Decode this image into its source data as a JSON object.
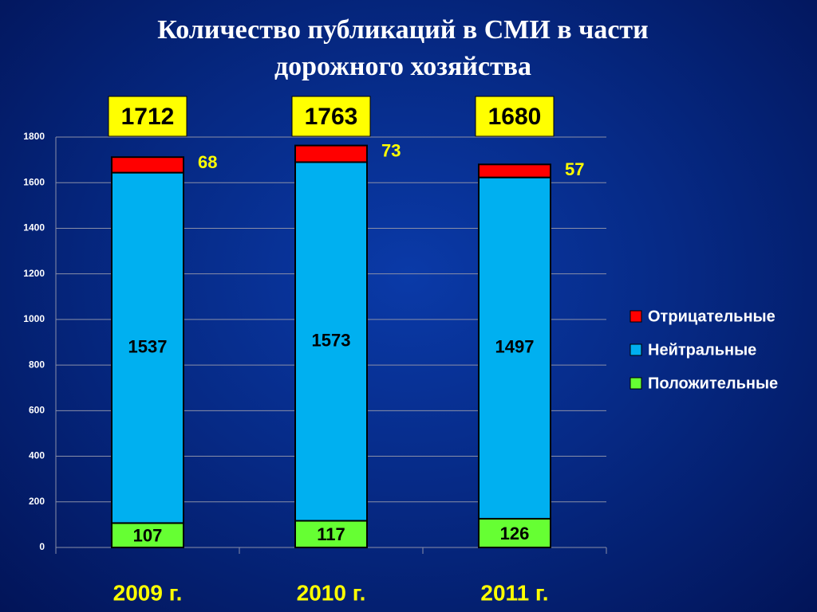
{
  "chart_data": {
    "type": "stacked-bar",
    "title": [
      "Количество публикаций в СМИ в части",
      "дорожного хозяйства"
    ],
    "categories": [
      "2009 г.",
      "2010 г.",
      "2011 г."
    ],
    "series": [
      {
        "name": "Положительные",
        "color": "#66ff33",
        "values": [
          107,
          117,
          126
        ]
      },
      {
        "name": "Нейтральные",
        "color": "#00b0f0",
        "values": [
          1537,
          1573,
          1497
        ]
      },
      {
        "name": "Отрицательные",
        "color": "#ff0000",
        "values": [
          68,
          73,
          57
        ]
      }
    ],
    "totals": [
      1712,
      1763,
      1680
    ],
    "ylim": [
      0,
      1800
    ],
    "yticks": [
      0,
      200,
      400,
      600,
      800,
      1000,
      1200,
      1400,
      1600,
      1800
    ],
    "grid": true,
    "legend": "right"
  }
}
